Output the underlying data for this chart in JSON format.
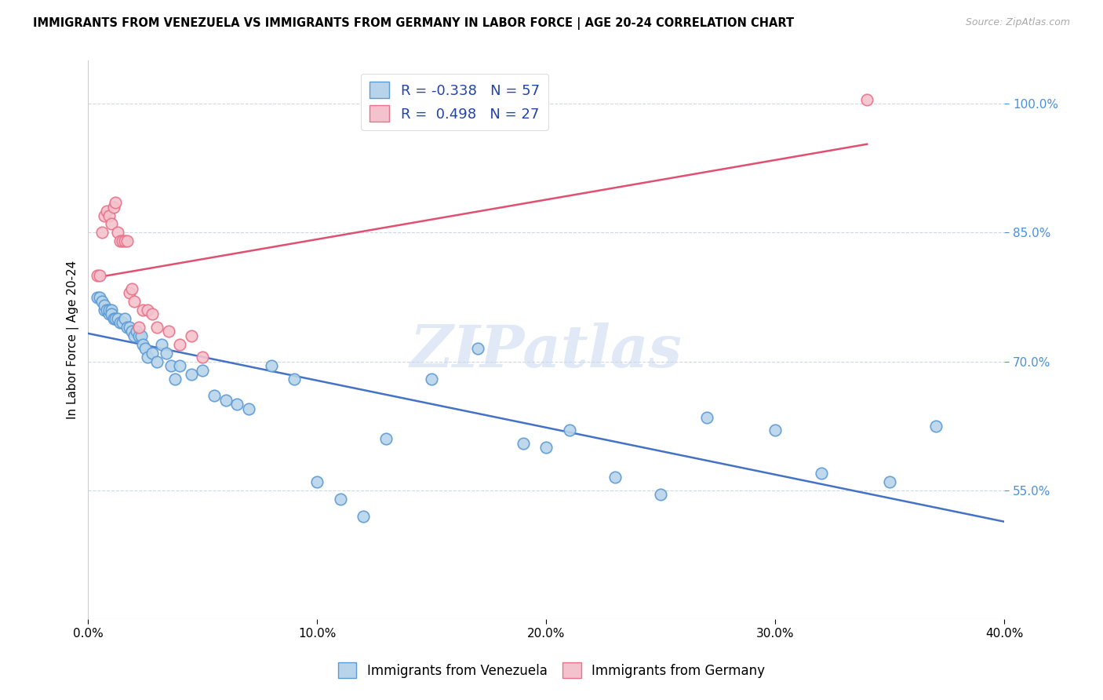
{
  "title": "IMMIGRANTS FROM VENEZUELA VS IMMIGRANTS FROM GERMANY IN LABOR FORCE | AGE 20-24 CORRELATION CHART",
  "source": "Source: ZipAtlas.com",
  "ylabel": "In Labor Force | Age 20-24",
  "xlim": [
    0.0,
    0.4
  ],
  "ylim": [
    0.4,
    1.05
  ],
  "yticks": [
    0.55,
    0.7,
    0.85,
    1.0
  ],
  "xticks": [
    0.0,
    0.1,
    0.2,
    0.3,
    0.4
  ],
  "venezuela_x": [
    0.004,
    0.005,
    0.006,
    0.007,
    0.007,
    0.008,
    0.009,
    0.009,
    0.01,
    0.01,
    0.011,
    0.012,
    0.013,
    0.014,
    0.015,
    0.016,
    0.017,
    0.018,
    0.019,
    0.02,
    0.021,
    0.022,
    0.023,
    0.024,
    0.025,
    0.026,
    0.028,
    0.03,
    0.032,
    0.034,
    0.036,
    0.038,
    0.04,
    0.045,
    0.05,
    0.055,
    0.06,
    0.065,
    0.07,
    0.08,
    0.09,
    0.1,
    0.11,
    0.12,
    0.13,
    0.15,
    0.17,
    0.19,
    0.2,
    0.21,
    0.23,
    0.25,
    0.27,
    0.3,
    0.32,
    0.35,
    0.37
  ],
  "venezuela_y": [
    0.775,
    0.775,
    0.77,
    0.76,
    0.765,
    0.76,
    0.755,
    0.76,
    0.76,
    0.755,
    0.75,
    0.75,
    0.75,
    0.745,
    0.745,
    0.75,
    0.74,
    0.74,
    0.735,
    0.73,
    0.735,
    0.73,
    0.73,
    0.72,
    0.715,
    0.705,
    0.71,
    0.7,
    0.72,
    0.71,
    0.695,
    0.68,
    0.695,
    0.685,
    0.69,
    0.66,
    0.655,
    0.65,
    0.645,
    0.695,
    0.68,
    0.56,
    0.54,
    0.52,
    0.61,
    0.68,
    0.715,
    0.605,
    0.6,
    0.62,
    0.565,
    0.545,
    0.635,
    0.62,
    0.57,
    0.56,
    0.625
  ],
  "germany_x": [
    0.004,
    0.005,
    0.006,
    0.007,
    0.008,
    0.009,
    0.01,
    0.011,
    0.012,
    0.013,
    0.014,
    0.015,
    0.016,
    0.017,
    0.018,
    0.019,
    0.02,
    0.022,
    0.024,
    0.026,
    0.028,
    0.03,
    0.035,
    0.04,
    0.045,
    0.05,
    0.34
  ],
  "germany_y": [
    0.8,
    0.8,
    0.85,
    0.87,
    0.875,
    0.87,
    0.86,
    0.88,
    0.885,
    0.85,
    0.84,
    0.84,
    0.84,
    0.84,
    0.78,
    0.785,
    0.77,
    0.74,
    0.76,
    0.76,
    0.755,
    0.74,
    0.735,
    0.72,
    0.73,
    0.705,
    1.005
  ],
  "venezuela_color": "#b8d4ea",
  "venezuela_edge_color": "#5b9bd5",
  "germany_color": "#f4c2cd",
  "germany_edge_color": "#e8728a",
  "venezuela_line_color": "#4472c4",
  "germany_line_color": "#e05070",
  "venezuela_r": "-0.338",
  "venezuela_n": "57",
  "germany_r": "0.498",
  "germany_n": "27",
  "legend_r_color": "#2244aa",
  "legend_n_color": "#2244aa",
  "watermark": "ZIPatlas",
  "legend_label_venezuela": "Immigrants from Venezuela",
  "legend_label_germany": "Immigrants from Germany",
  "tick_color_right": "#4a90d9",
  "grid_color": "#d0d8e8",
  "source_color": "#aaaaaa"
}
